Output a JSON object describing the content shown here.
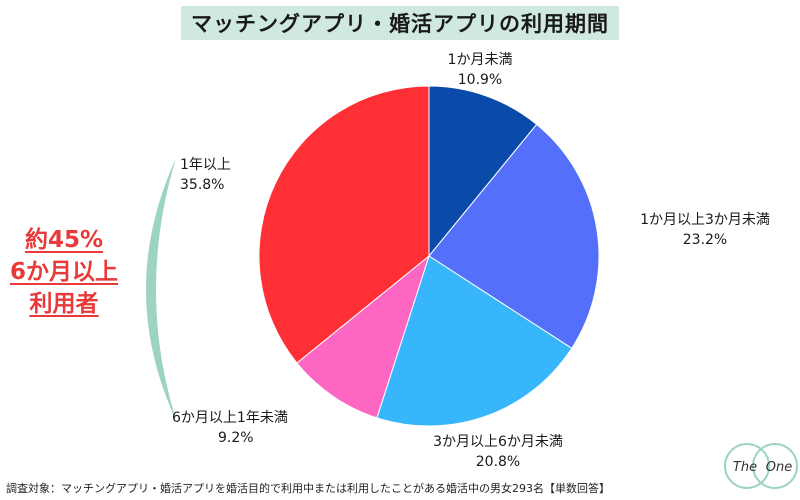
{
  "title": "マッチングアプリ・婚活アプリの利用期間",
  "chart_data": {
    "type": "pie",
    "title": "マッチングアプリ・婚活アプリの利用期間",
    "slices": [
      {
        "label": "1か月未満",
        "value": 10.9,
        "value_label": "10.9%",
        "color": "#0a4aa8"
      },
      {
        "label": "1か月以上3か月未満",
        "value": 23.2,
        "value_label": "23.2%",
        "color": "#5470fb"
      },
      {
        "label": "3か月以上6か月未満",
        "value": 20.8,
        "value_label": "20.8%",
        "color": "#38b6fb"
      },
      {
        "label": "6か月以上1年未満",
        "value": 9.2,
        "value_label": "9.2%",
        "color": "#fe66c4"
      },
      {
        "label": "1年以上",
        "value": 35.8,
        "value_label": "35.8%",
        "color": "#fe3035"
      }
    ],
    "start": "12 o'clock",
    "direction": "clockwise"
  },
  "callout": {
    "lines": [
      "約45%",
      "6か月以上",
      "利用者"
    ],
    "text_color": "#e83a3a",
    "bracket_color": "#9dd3c2"
  },
  "footnote": "調査対象：マッチングアプリ・婚活アプリを婚活目的で利用中または利用したことがある婚活中の男女293名【単数回答】",
  "logo": {
    "left": "The",
    "right": "One",
    "color": "#9dd3c2"
  }
}
